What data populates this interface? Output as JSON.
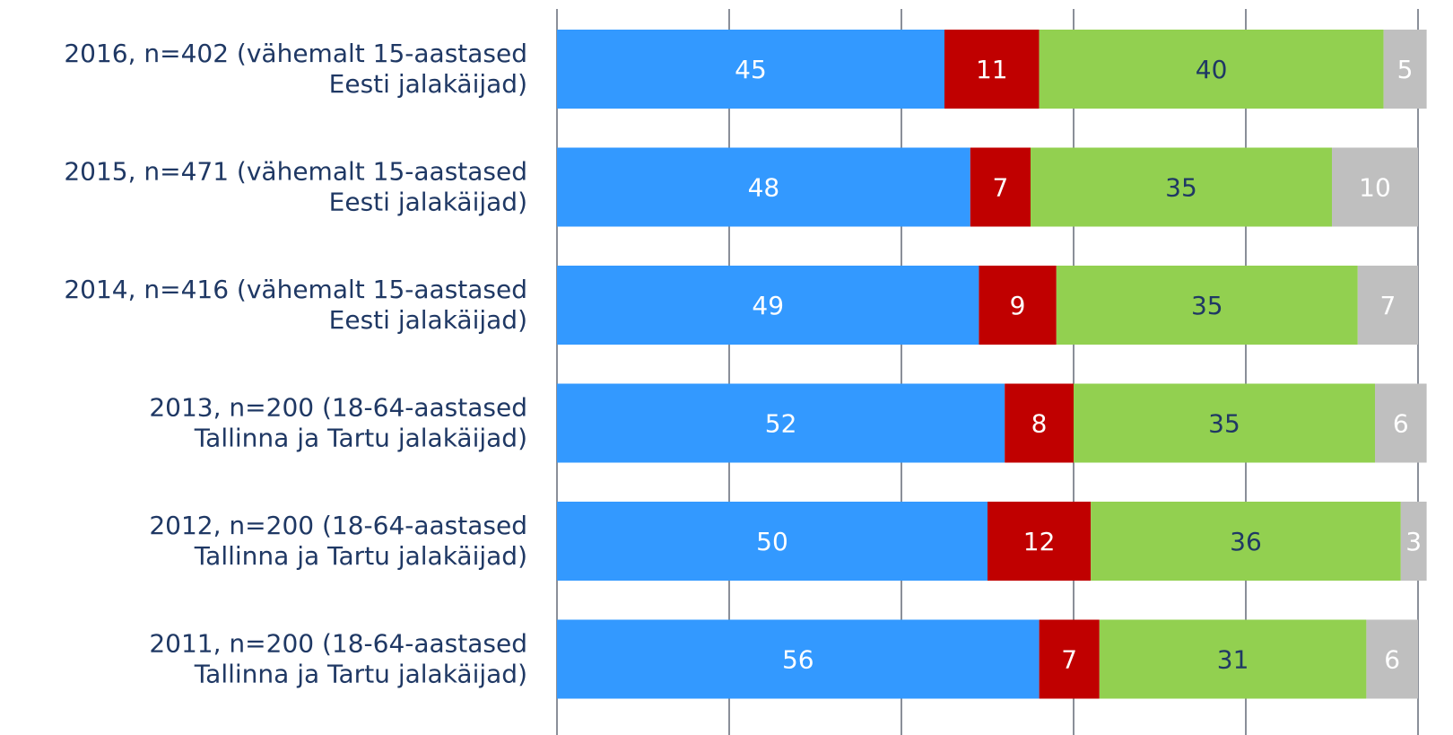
{
  "chart_data": {
    "type": "bar",
    "orientation": "horizontal",
    "stacked": true,
    "categories": [
      [
        "2016, n=402 (vähemalt 15-aastased",
        "Eesti jalakäijad)"
      ],
      [
        "2015, n=471 (vähemalt 15-aastased",
        "Eesti jalakäijad)"
      ],
      [
        "2014, n=416 (vähemalt 15-aastased",
        "Eesti jalakäijad)"
      ],
      [
        "2013, n=200 (18-64-aastased",
        "Tallinna ja Tartu jalakäijad)"
      ],
      [
        "2012, n=200 (18-64-aastased",
        "Tallinna ja Tartu jalakäijad)"
      ],
      [
        "2011, n=200 (18-64-aastased",
        "Tallinna ja Tartu jalakäijad)"
      ]
    ],
    "series": [
      {
        "values": [
          45,
          48,
          49,
          52,
          50,
          56
        ],
        "color": "#3399ff",
        "label_color": "#ffffff"
      },
      {
        "values": [
          11,
          7,
          9,
          8,
          12,
          7
        ],
        "color": "#c00000",
        "label_color": "#ffffff"
      },
      {
        "values": [
          40,
          35,
          35,
          35,
          36,
          31
        ],
        "color": "#92d050",
        "label_color": "#1f3864"
      },
      {
        "values": [
          5,
          10,
          7,
          6,
          3,
          6
        ],
        "color": "#bfbfbf",
        "label_color": "#ffffff"
      }
    ],
    "xlim": [
      0,
      100
    ],
    "grid": true,
    "legend": "none"
  }
}
